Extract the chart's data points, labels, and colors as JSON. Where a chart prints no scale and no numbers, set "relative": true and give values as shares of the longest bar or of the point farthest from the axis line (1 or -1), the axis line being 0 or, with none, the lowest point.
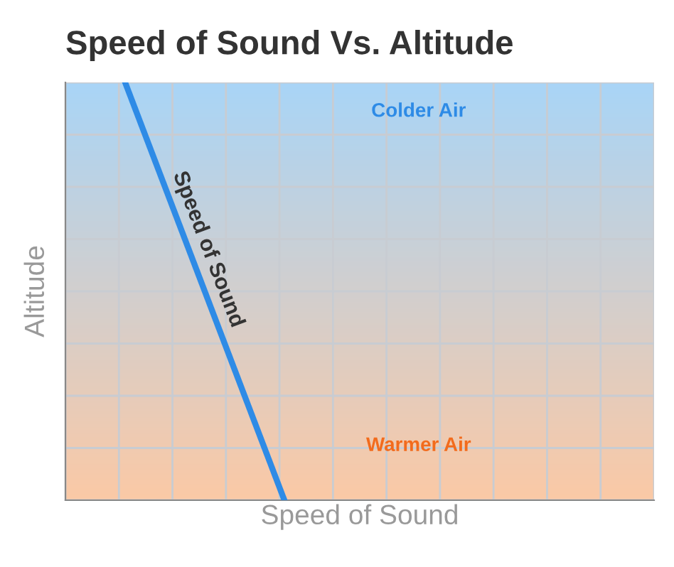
{
  "chart_data": {
    "type": "line",
    "title": "Speed of Sound Vs. Altitude",
    "xlabel": "Speed of Sound",
    "ylabel": "Altitude",
    "relative": true,
    "grid": true,
    "tick_labels": false,
    "legend": false,
    "categories": [
      null,
      null
    ],
    "series": [
      {
        "name": "Speed of Sound",
        "color": "#2e8be6",
        "values": [
          1,
          0
        ]
      }
    ],
    "annotations": [
      "Colder Air",
      "Warmer Air"
    ]
  }
}
